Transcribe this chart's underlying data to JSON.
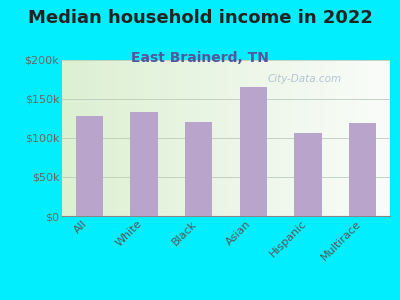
{
  "title": "Median household income in 2022",
  "subtitle": "East Brainerd, TN",
  "categories": [
    "All",
    "White",
    "Black",
    "Asian",
    "Hispanic",
    "Multirace"
  ],
  "values": [
    128000,
    133000,
    120000,
    165000,
    107000,
    119000
  ],
  "bar_color": "#b9a4cc",
  "background_outer": "#00eeff",
  "ylim": [
    0,
    200000
  ],
  "yticks": [
    0,
    50000,
    100000,
    150000,
    200000
  ],
  "ytick_labels": [
    "$0",
    "$50k",
    "$100k",
    "$150k",
    "$200k"
  ],
  "title_fontsize": 13,
  "subtitle_fontsize": 10,
  "tick_label_fontsize": 8,
  "title_color": "#222222",
  "subtitle_color": "#555599",
  "watermark": "City-Data.com",
  "watermark_color": "#aabbcc"
}
